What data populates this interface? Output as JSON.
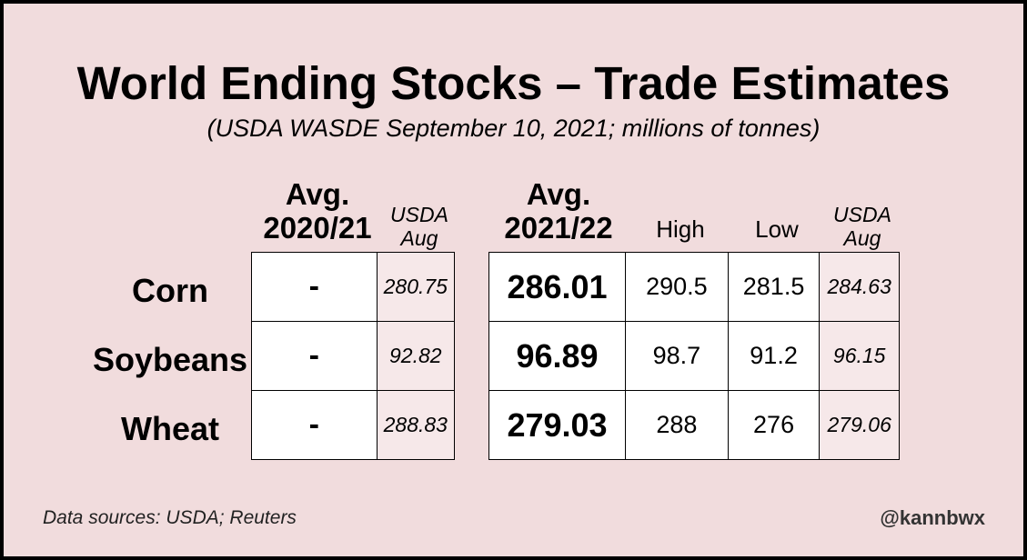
{
  "title": "World Ending Stocks – Trade Estimates",
  "subtitle": "(USDA WASDE September 10, 2021; millions of tonnes)",
  "headers": {
    "avg_2020_21_line1": "Avg.",
    "avg_2020_21_line2": "2020/21",
    "usda_aug_1_line1": "USDA",
    "usda_aug_1_line2": "Aug",
    "avg_2021_22_line1": "Avg.",
    "avg_2021_22_line2": "2021/22",
    "high": "High",
    "low": "Low",
    "usda_aug_2_line1": "USDA",
    "usda_aug_2_line2": "Aug"
  },
  "rows": [
    {
      "crop": "Corn",
      "avg_2020_21": "-",
      "usda_aug_2020_21": "280.75",
      "avg_2021_22": "286.01",
      "high": "290.5",
      "low": "281.5",
      "usda_aug_2021_22": "284.63"
    },
    {
      "crop": "Soybeans",
      "avg_2020_21": "-",
      "usda_aug_2020_21": "92.82",
      "avg_2021_22": "96.89",
      "high": "98.7",
      "low": "91.2",
      "usda_aug_2021_22": "96.15"
    },
    {
      "crop": "Wheat",
      "avg_2020_21": "-",
      "usda_aug_2020_21": "288.83",
      "avg_2021_22": "279.03",
      "high": "288",
      "low": "276",
      "usda_aug_2021_22": "279.06"
    }
  ],
  "footer": {
    "sources": "Data sources: USDA; Reuters",
    "handle": "@kannbwx"
  },
  "colors": {
    "background": "#f1dcdd",
    "border": "#000000",
    "cell_white": "#ffffff",
    "cell_pink": "#f6e8e9"
  }
}
